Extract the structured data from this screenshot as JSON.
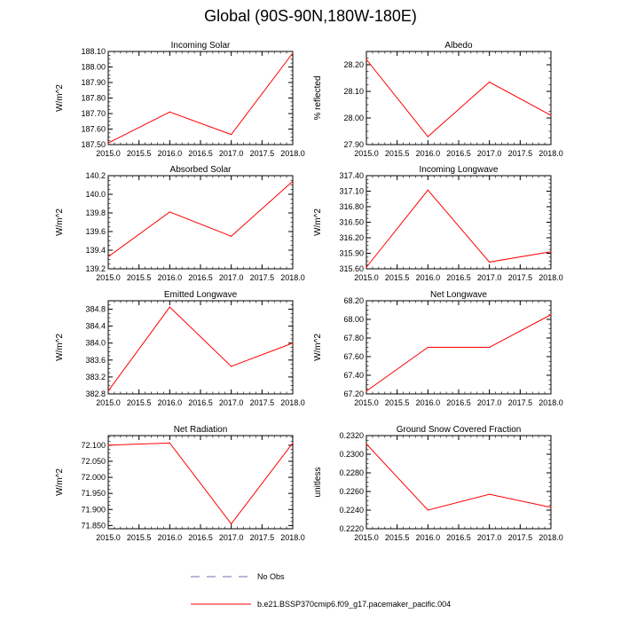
{
  "title": "Global (90S-90N,180W-180E)",
  "colors": {
    "series": "#ff0000",
    "obs": "#6f6fb0",
    "axis": "#000000"
  },
  "legend": {
    "obs_label": "No Obs",
    "series_label": "b.e21.BSSP370cmip6.f09_g17.pacemaker_pacific.004"
  },
  "chart_data": [
    {
      "type": "line",
      "title": "Incoming Solar",
      "ylabel": "W/m^2",
      "x": [
        2015.0,
        2016.0,
        2017.0,
        2018.0
      ],
      "values": [
        187.51,
        187.71,
        187.565,
        188.09
      ],
      "xlim": [
        2015.0,
        2018.0
      ],
      "ylim": [
        187.5,
        188.1
      ],
      "xticks": [
        "2015.0",
        "2015.5",
        "2016.0",
        "2016.5",
        "2017.0",
        "2017.5",
        "2018.0"
      ],
      "yticks": [
        "187.50",
        "187.60",
        "187.70",
        "187.80",
        "187.90",
        "188.00",
        "188.10"
      ]
    },
    {
      "type": "line",
      "title": "Albedo",
      "ylabel": "% reflected",
      "x": [
        2015.0,
        2016.0,
        2017.0,
        2018.0
      ],
      "values": [
        28.22,
        27.93,
        28.135,
        28.01
      ],
      "xlim": [
        2015.0,
        2018.0
      ],
      "ylim": [
        27.9,
        28.25
      ],
      "xticks": [
        "2015.0",
        "2015.5",
        "2016.0",
        "2016.5",
        "2017.0",
        "2017.5",
        "2018.0"
      ],
      "yticks": [
        "27.90",
        "28.00",
        "28.10",
        "28.20"
      ]
    },
    {
      "type": "line",
      "title": "Absorbed Solar",
      "ylabel": "W/m^2",
      "x": [
        2015.0,
        2016.0,
        2017.0,
        2018.0
      ],
      "values": [
        139.33,
        139.81,
        139.55,
        140.14
      ],
      "xlim": [
        2015.0,
        2018.0
      ],
      "ylim": [
        139.2,
        140.2
      ],
      "xticks": [
        "2015.0",
        "2015.5",
        "2016.0",
        "2016.5",
        "2017.0",
        "2017.5",
        "2018.0"
      ],
      "yticks": [
        "139.2",
        "139.4",
        "139.6",
        "139.8",
        "140.0",
        "140.2"
      ]
    },
    {
      "type": "line",
      "title": "Incoming Longwave",
      "ylabel": "W/m^2",
      "x": [
        2015.0,
        2016.0,
        2017.0,
        2018.0
      ],
      "values": [
        315.63,
        317.12,
        315.73,
        315.93
      ],
      "xlim": [
        2015.0,
        2018.0
      ],
      "ylim": [
        315.6,
        317.4
      ],
      "xticks": [
        "2015.0",
        "2015.5",
        "2016.0",
        "2016.5",
        "2017.0",
        "2017.5",
        "2018.0"
      ],
      "yticks": [
        "315.60",
        "315.90",
        "316.20",
        "316.50",
        "316.80",
        "317.10",
        "317.40"
      ]
    },
    {
      "type": "line",
      "title": "Emitted Longwave",
      "ylabel": "W/m^2",
      "x": [
        2015.0,
        2016.0,
        2017.0,
        2018.0
      ],
      "values": [
        382.87,
        384.85,
        383.45,
        384.0
      ],
      "xlim": [
        2015.0,
        2018.0
      ],
      "ylim": [
        382.8,
        385.0
      ],
      "xticks": [
        "2015.0",
        "2015.5",
        "2016.0",
        "2016.5",
        "2017.0",
        "2017.5",
        "2018.0"
      ],
      "yticks": [
        "382.8",
        "383.2",
        "383.6",
        "384.0",
        "384.4",
        "384.8"
      ]
    },
    {
      "type": "line",
      "title": "Net Longwave",
      "ylabel": "W/m^2",
      "x": [
        2015.0,
        2016.0,
        2017.0,
        2018.0
      ],
      "values": [
        67.23,
        67.7,
        67.7,
        68.05
      ],
      "xlim": [
        2015.0,
        2018.0
      ],
      "ylim": [
        67.2,
        68.2
      ],
      "xticks": [
        "2015.0",
        "2015.5",
        "2016.0",
        "2016.5",
        "2017.0",
        "2017.5",
        "2018.0"
      ],
      "yticks": [
        "67.20",
        "67.40",
        "67.60",
        "67.80",
        "68.00",
        "68.20"
      ]
    },
    {
      "type": "line",
      "title": "Net Radiation",
      "ylabel": "W/m^2",
      "x": [
        2015.0,
        2016.0,
        2017.0,
        2018.0
      ],
      "values": [
        72.1,
        72.107,
        71.855,
        72.107
      ],
      "xlim": [
        2015.0,
        2018.0
      ],
      "ylim": [
        71.84,
        72.13
      ],
      "xticks": [
        "2015.0",
        "2015.5",
        "2016.0",
        "2016.5",
        "2017.0",
        "2017.5",
        "2018.0"
      ],
      "yticks": [
        "71.850",
        "71.900",
        "71.950",
        "72.000",
        "72.050",
        "72.100"
      ]
    },
    {
      "type": "line",
      "title": "Ground Snow Covered Fraction",
      "ylabel": "unitless",
      "x": [
        2015.0,
        2016.0,
        2017.0,
        2018.0
      ],
      "values": [
        0.2311,
        0.224,
        0.2257,
        0.2243
      ],
      "xlim": [
        2015.0,
        2018.0
      ],
      "ylim": [
        0.222,
        0.232
      ],
      "xticks": [
        "2015.0",
        "2015.5",
        "2016.0",
        "2016.5",
        "2017.0",
        "2017.5",
        "2018.0"
      ],
      "yticks": [
        "0.2220",
        "0.2240",
        "0.2260",
        "0.2280",
        "0.2300",
        "0.2320"
      ]
    }
  ]
}
